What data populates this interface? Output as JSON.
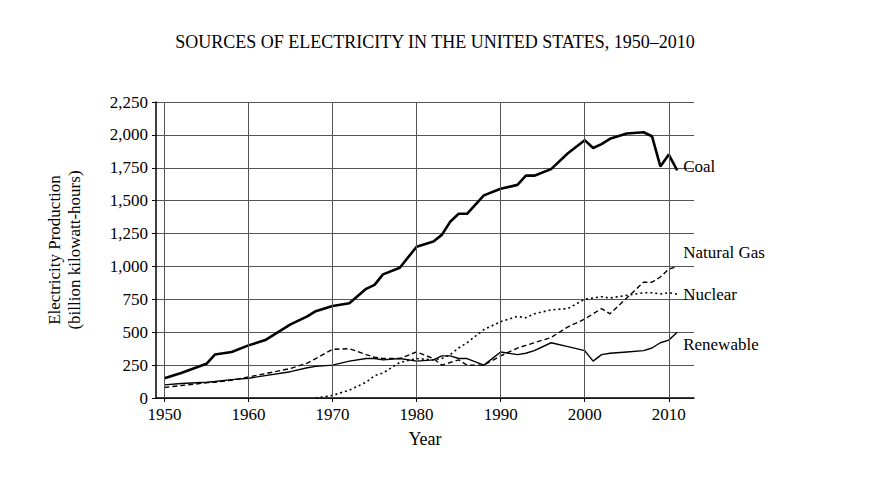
{
  "chart_data": {
    "type": "line",
    "title": "SOURCES OF ELECTRICITY IN THE UNITED STATES, 1950–2010",
    "x_label": "Year",
    "y_label": [
      "Electricity Production",
      "(billion kilowatt-hours)"
    ],
    "x": [
      1950,
      1952,
      1955,
      1956,
      1958,
      1960,
      1962,
      1965,
      1967,
      1968,
      1970,
      1972,
      1974,
      1975,
      1976,
      1978,
      1980,
      1982,
      1983,
      1984,
      1985,
      1986,
      1988,
      1990,
      1992,
      1993,
      1994,
      1996,
      1998,
      2000,
      2001,
      2002,
      2003,
      2005,
      2007,
      2008,
      2009,
      2010,
      2011
    ],
    "series": [
      {
        "name": "Coal",
        "color": "#000000",
        "line_style": "solid",
        "values": [
          150,
          190,
          260,
          330,
          350,
          400,
          440,
          560,
          620,
          660,
          700,
          720,
          830,
          860,
          940,
          990,
          1150,
          1190,
          1240,
          1340,
          1400,
          1400,
          1540,
          1590,
          1620,
          1690,
          1690,
          1740,
          1860,
          1960,
          1900,
          1930,
          1970,
          2010,
          2020,
          1990,
          1760,
          1850,
          1730
        ]
      },
      {
        "name": "Natural Gas",
        "color": "#000000",
        "line_style": "dashed",
        "values": [
          80,
          95,
          115,
          120,
          135,
          160,
          185,
          225,
          265,
          300,
          370,
          375,
          330,
          310,
          300,
          300,
          350,
          300,
          250,
          270,
          290,
          250,
          250,
          320,
          380,
          400,
          420,
          460,
          540,
          600,
          640,
          680,
          640,
          760,
          880,
          880,
          920,
          980,
          1000
        ]
      },
      {
        "name": "Nuclear",
        "color": "#000000",
        "line_style": "dotted",
        "values": [
          null,
          null,
          null,
          null,
          null,
          null,
          null,
          null,
          null,
          0,
          20,
          60,
          120,
          170,
          190,
          270,
          300,
          290,
          300,
          330,
          380,
          420,
          520,
          580,
          620,
          610,
          640,
          670,
          680,
          750,
          760,
          770,
          760,
          780,
          800,
          800,
          790,
          800,
          790
        ]
      },
      {
        "name": "Renewable",
        "color": "#000000",
        "line_style": "solid",
        "values": [
          100,
          110,
          120,
          125,
          140,
          150,
          170,
          200,
          230,
          240,
          250,
          280,
          300,
          300,
          290,
          300,
          280,
          290,
          320,
          320,
          300,
          300,
          250,
          350,
          330,
          340,
          360,
          420,
          390,
          360,
          280,
          330,
          340,
          350,
          360,
          380,
          420,
          440,
          500
        ]
      }
    ],
    "xlim": [
      1949,
      2013
    ],
    "xticks": [
      1950,
      1960,
      1970,
      1980,
      1990,
      2000,
      2010
    ],
    "ylim": [
      0,
      2250
    ],
    "yticks": [
      0,
      250,
      500,
      750,
      {
        "value": 1000,
        "label": "1,000"
      },
      {
        "value": 1250,
        "label": "1,250"
      },
      {
        "value": 1500,
        "label": "1,500"
      },
      {
        "value": 1750,
        "label": "1,750"
      },
      {
        "value": 2000,
        "label": "2,000"
      },
      {
        "value": 2250,
        "label": "2,250"
      }
    ],
    "grid": true,
    "marker": "none"
  }
}
